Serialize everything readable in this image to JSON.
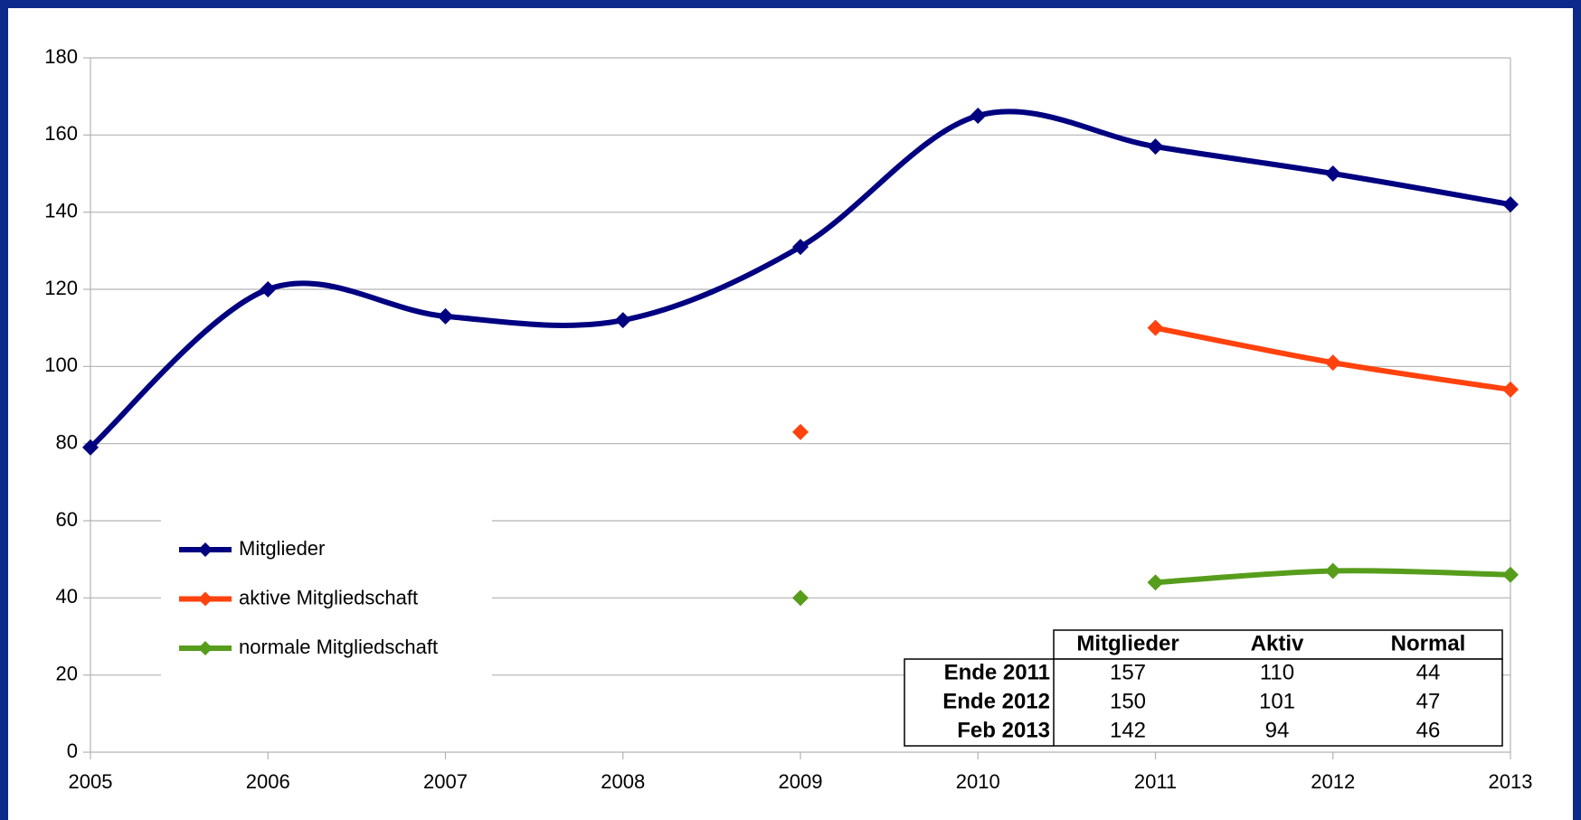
{
  "chart_data": {
    "type": "line",
    "smooth": true,
    "x": [
      2005,
      2006,
      2007,
      2008,
      2009,
      2010,
      2011,
      2012,
      2013
    ],
    "xlim": [
      2005,
      2013
    ],
    "xticks": [
      2005,
      2006,
      2007,
      2008,
      2009,
      2010,
      2011,
      2012,
      2013
    ],
    "ylim": [
      0,
      180
    ],
    "yticks": [
      0,
      20,
      40,
      60,
      80,
      100,
      120,
      140,
      160,
      180
    ],
    "grid": true,
    "legend": "left",
    "series": [
      {
        "name": "Mitglieder",
        "color": "#000080",
        "values": [
          79,
          120,
          113,
          112,
          131,
          165,
          157,
          150,
          142
        ]
      },
      {
        "name": "aktive Mitgliedschaft",
        "color": "#ff420e",
        "values": [
          null,
          null,
          null,
          null,
          83,
          null,
          110,
          101,
          94
        ]
      },
      {
        "name": "normale Mitgliedschaft",
        "color": "#579d1c",
        "values": [
          null,
          null,
          null,
          null,
          40,
          null,
          44,
          47,
          46
        ]
      }
    ],
    "table": {
      "columns": [
        "Mitglieder",
        "Aktiv",
        "Normal"
      ],
      "rows": [
        {
          "label": "Ende 2011",
          "cells": [
            157,
            110,
            44
          ]
        },
        {
          "label": "Ende 2012",
          "cells": [
            150,
            101,
            47
          ]
        },
        {
          "label": "Feb 2013",
          "cells": [
            142,
            94,
            46
          ]
        }
      ]
    }
  }
}
